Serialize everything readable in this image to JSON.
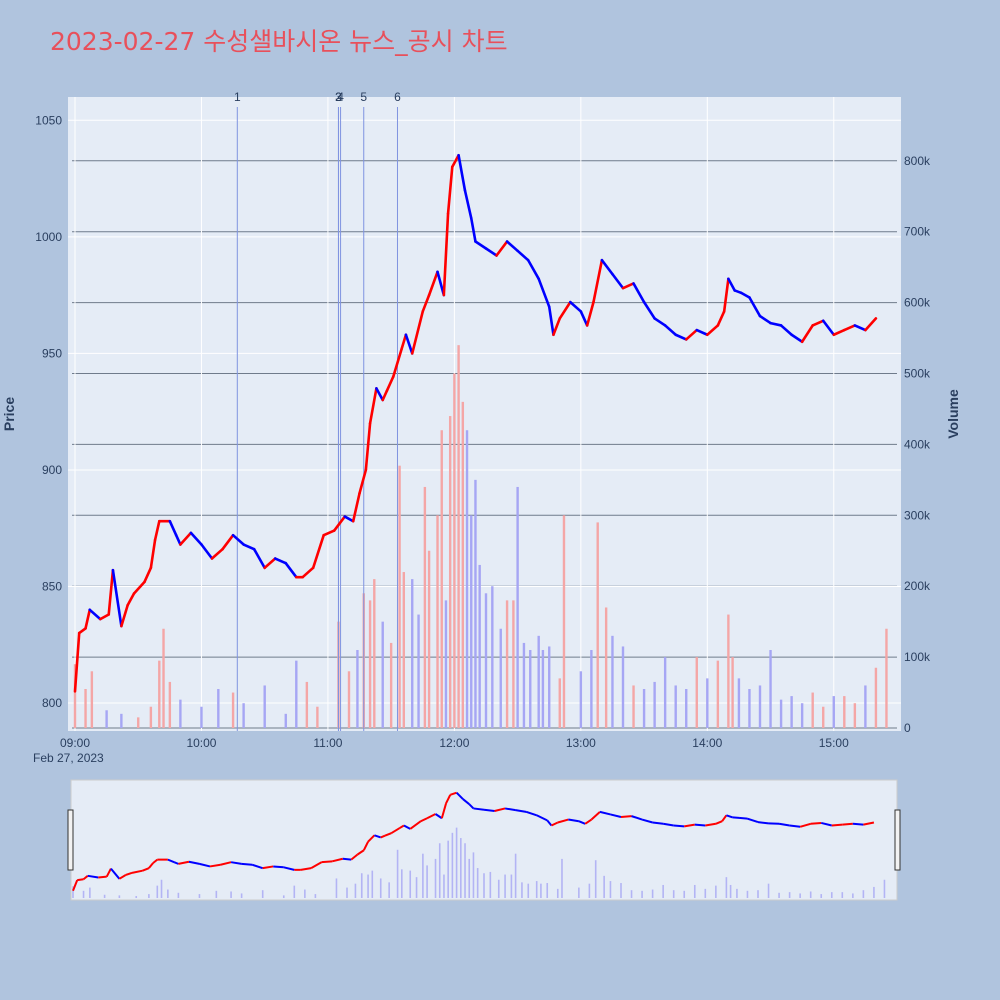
{
  "title": "2023-02-27 수성샐바시온 뉴스_공시 차트",
  "colors": {
    "background": "#b0c4de",
    "plot_bg": "#e5ecf6",
    "title": "#e8505b",
    "up": "#ff0000",
    "down": "#0000ff",
    "up_volume": "#f4a6a6",
    "down_volume": "#a6a6f4",
    "news_line": "#7f93e0"
  },
  "chart_data": {
    "type": "candlestick",
    "title": "2023-02-27 수성샐바시온 뉴스_공시 차트",
    "date_label": "Feb 27, 2023",
    "y_left_label": "Price",
    "y_right_label": "Volume",
    "x_range": [
      "09:00",
      "15:30"
    ],
    "y_price_range": [
      788,
      1060
    ],
    "y_volume_range": [
      0,
      890000
    ],
    "x_ticks": [
      "09:00",
      "10:00",
      "11:00",
      "12:00",
      "13:00",
      "14:00",
      "15:00"
    ],
    "y_price_ticks": [
      800,
      850,
      900,
      950,
      1000,
      1050
    ],
    "y_volume_ticks": [
      "0",
      "100k",
      "200k",
      "300k",
      "400k",
      "500k",
      "600k",
      "700k",
      "800k"
    ],
    "y_volume_tick_values": [
      0,
      100000,
      200000,
      300000,
      400000,
      500000,
      600000,
      700000,
      800000
    ],
    "grid": true,
    "has_range_slider": true,
    "news_markers": [
      {
        "label": "1",
        "time": "10:17"
      },
      {
        "label": "2",
        "time": "11:05"
      },
      {
        "label": "3",
        "time": "11:05"
      },
      {
        "label": "4",
        "time": "11:06"
      },
      {
        "label": "5",
        "time": "11:17"
      },
      {
        "label": "6",
        "time": "11:33"
      }
    ],
    "price_path": [
      [
        "09:00",
        805
      ],
      [
        "09:02",
        830
      ],
      [
        "09:05",
        832
      ],
      [
        "09:07",
        840
      ],
      [
        "09:12",
        836
      ],
      [
        "09:16",
        838
      ],
      [
        "09:18",
        857
      ],
      [
        "09:22",
        833
      ],
      [
        "09:25",
        842
      ],
      [
        "09:28",
        847
      ],
      [
        "09:33",
        852
      ],
      [
        "09:36",
        858
      ],
      [
        "09:38",
        870
      ],
      [
        "09:40",
        878
      ],
      [
        "09:45",
        878
      ],
      [
        "09:48",
        872
      ],
      [
        "09:50",
        868
      ],
      [
        "09:55",
        873
      ],
      [
        "10:00",
        868
      ],
      [
        "10:05",
        862
      ],
      [
        "10:10",
        866
      ],
      [
        "10:15",
        872
      ],
      [
        "10:20",
        868
      ],
      [
        "10:25",
        866
      ],
      [
        "10:30",
        858
      ],
      [
        "10:35",
        862
      ],
      [
        "10:40",
        860
      ],
      [
        "10:45",
        854
      ],
      [
        "10:48",
        854
      ],
      [
        "10:53",
        858
      ],
      [
        "10:58",
        872
      ],
      [
        "11:03",
        874
      ],
      [
        "11:08",
        880
      ],
      [
        "11:12",
        878
      ],
      [
        "11:15",
        890
      ],
      [
        "11:18",
        900
      ],
      [
        "11:20",
        920
      ],
      [
        "11:23",
        935
      ],
      [
        "11:26",
        930
      ],
      [
        "11:28",
        934
      ],
      [
        "11:31",
        940
      ],
      [
        "11:35",
        952
      ],
      [
        "11:37",
        958
      ],
      [
        "11:40",
        950
      ],
      [
        "11:45",
        968
      ],
      [
        "11:48",
        975
      ],
      [
        "11:52",
        985
      ],
      [
        "11:55",
        975
      ],
      [
        "11:57",
        1010
      ],
      [
        "11:59",
        1030
      ],
      [
        "12:02",
        1035
      ],
      [
        "12:05",
        1020
      ],
      [
        "12:08",
        1008
      ],
      [
        "12:10",
        998
      ],
      [
        "12:15",
        995
      ],
      [
        "12:20",
        992
      ],
      [
        "12:25",
        998
      ],
      [
        "12:30",
        994
      ],
      [
        "12:35",
        990
      ],
      [
        "12:40",
        982
      ],
      [
        "12:45",
        970
      ],
      [
        "12:47",
        958
      ],
      [
        "12:50",
        965
      ],
      [
        "12:55",
        972
      ],
      [
        "13:00",
        968
      ],
      [
        "13:03",
        962
      ],
      [
        "13:06",
        972
      ],
      [
        "13:10",
        990
      ],
      [
        "13:15",
        984
      ],
      [
        "13:20",
        978
      ],
      [
        "13:25",
        980
      ],
      [
        "13:30",
        972
      ],
      [
        "13:35",
        965
      ],
      [
        "13:40",
        962
      ],
      [
        "13:45",
        958
      ],
      [
        "13:50",
        956
      ],
      [
        "13:55",
        960
      ],
      [
        "14:00",
        958
      ],
      [
        "14:05",
        962
      ],
      [
        "14:08",
        968
      ],
      [
        "14:10",
        982
      ],
      [
        "14:13",
        977
      ],
      [
        "14:16",
        976
      ],
      [
        "14:20",
        974
      ],
      [
        "14:25",
        966
      ],
      [
        "14:30",
        963
      ],
      [
        "14:35",
        962
      ],
      [
        "14:40",
        958
      ],
      [
        "14:45",
        955
      ],
      [
        "14:50",
        962
      ],
      [
        "14:55",
        964
      ],
      [
        "15:00",
        958
      ],
      [
        "15:05",
        960
      ],
      [
        "15:10",
        962
      ],
      [
        "15:15",
        960
      ],
      [
        "15:20",
        965
      ]
    ],
    "volume_bars": [
      [
        "09:00",
        90000
      ],
      [
        "09:05",
        55000
      ],
      [
        "09:08",
        80000
      ],
      [
        "09:15",
        25000
      ],
      [
        "09:22",
        20000
      ],
      [
        "09:30",
        15000
      ],
      [
        "09:36",
        30000
      ],
      [
        "09:40",
        95000
      ],
      [
        "09:42",
        140000
      ],
      [
        "09:45",
        65000
      ],
      [
        "09:50",
        40000
      ],
      [
        "10:00",
        30000
      ],
      [
        "10:08",
        55000
      ],
      [
        "10:15",
        50000
      ],
      [
        "10:20",
        35000
      ],
      [
        "10:30",
        60000
      ],
      [
        "10:40",
        20000
      ],
      [
        "10:45",
        95000
      ],
      [
        "10:50",
        65000
      ],
      [
        "10:55",
        30000
      ],
      [
        "11:05",
        150000
      ],
      [
        "11:10",
        80000
      ],
      [
        "11:14",
        110000
      ],
      [
        "11:17",
        190000
      ],
      [
        "11:20",
        180000
      ],
      [
        "11:22",
        210000
      ],
      [
        "11:26",
        150000
      ],
      [
        "11:30",
        120000
      ],
      [
        "11:34",
        370000
      ],
      [
        "11:36",
        220000
      ],
      [
        "11:40",
        210000
      ],
      [
        "11:43",
        160000
      ],
      [
        "11:46",
        340000
      ],
      [
        "11:48",
        250000
      ],
      [
        "11:52",
        300000
      ],
      [
        "11:54",
        420000
      ],
      [
        "11:56",
        180000
      ],
      [
        "11:58",
        440000
      ],
      [
        "12:00",
        500000
      ],
      [
        "12:02",
        540000
      ],
      [
        "12:04",
        460000
      ],
      [
        "12:06",
        420000
      ],
      [
        "12:08",
        300000
      ],
      [
        "12:10",
        350000
      ],
      [
        "12:12",
        230000
      ],
      [
        "12:15",
        190000
      ],
      [
        "12:18",
        200000
      ],
      [
        "12:22",
        140000
      ],
      [
        "12:25",
        180000
      ],
      [
        "12:28",
        180000
      ],
      [
        "12:30",
        340000
      ],
      [
        "12:33",
        120000
      ],
      [
        "12:36",
        110000
      ],
      [
        "12:40",
        130000
      ],
      [
        "12:42",
        110000
      ],
      [
        "12:45",
        115000
      ],
      [
        "12:50",
        70000
      ],
      [
        "12:52",
        300000
      ],
      [
        "13:00",
        80000
      ],
      [
        "13:05",
        110000
      ],
      [
        "13:08",
        290000
      ],
      [
        "13:12",
        170000
      ],
      [
        "13:15",
        130000
      ],
      [
        "13:20",
        115000
      ],
      [
        "13:25",
        60000
      ],
      [
        "13:30",
        55000
      ],
      [
        "13:35",
        65000
      ],
      [
        "13:40",
        100000
      ],
      [
        "13:45",
        60000
      ],
      [
        "13:50",
        55000
      ],
      [
        "13:55",
        100000
      ],
      [
        "14:00",
        70000
      ],
      [
        "14:05",
        95000
      ],
      [
        "14:10",
        160000
      ],
      [
        "14:12",
        100000
      ],
      [
        "14:15",
        70000
      ],
      [
        "14:20",
        55000
      ],
      [
        "14:25",
        60000
      ],
      [
        "14:30",
        110000
      ],
      [
        "14:35",
        40000
      ],
      [
        "14:40",
        45000
      ],
      [
        "14:45",
        35000
      ],
      [
        "14:50",
        50000
      ],
      [
        "14:55",
        30000
      ],
      [
        "15:00",
        45000
      ],
      [
        "15:05",
        45000
      ],
      [
        "15:10",
        35000
      ],
      [
        "15:15",
        60000
      ],
      [
        "15:20",
        85000
      ],
      [
        "15:25",
        140000
      ]
    ]
  }
}
